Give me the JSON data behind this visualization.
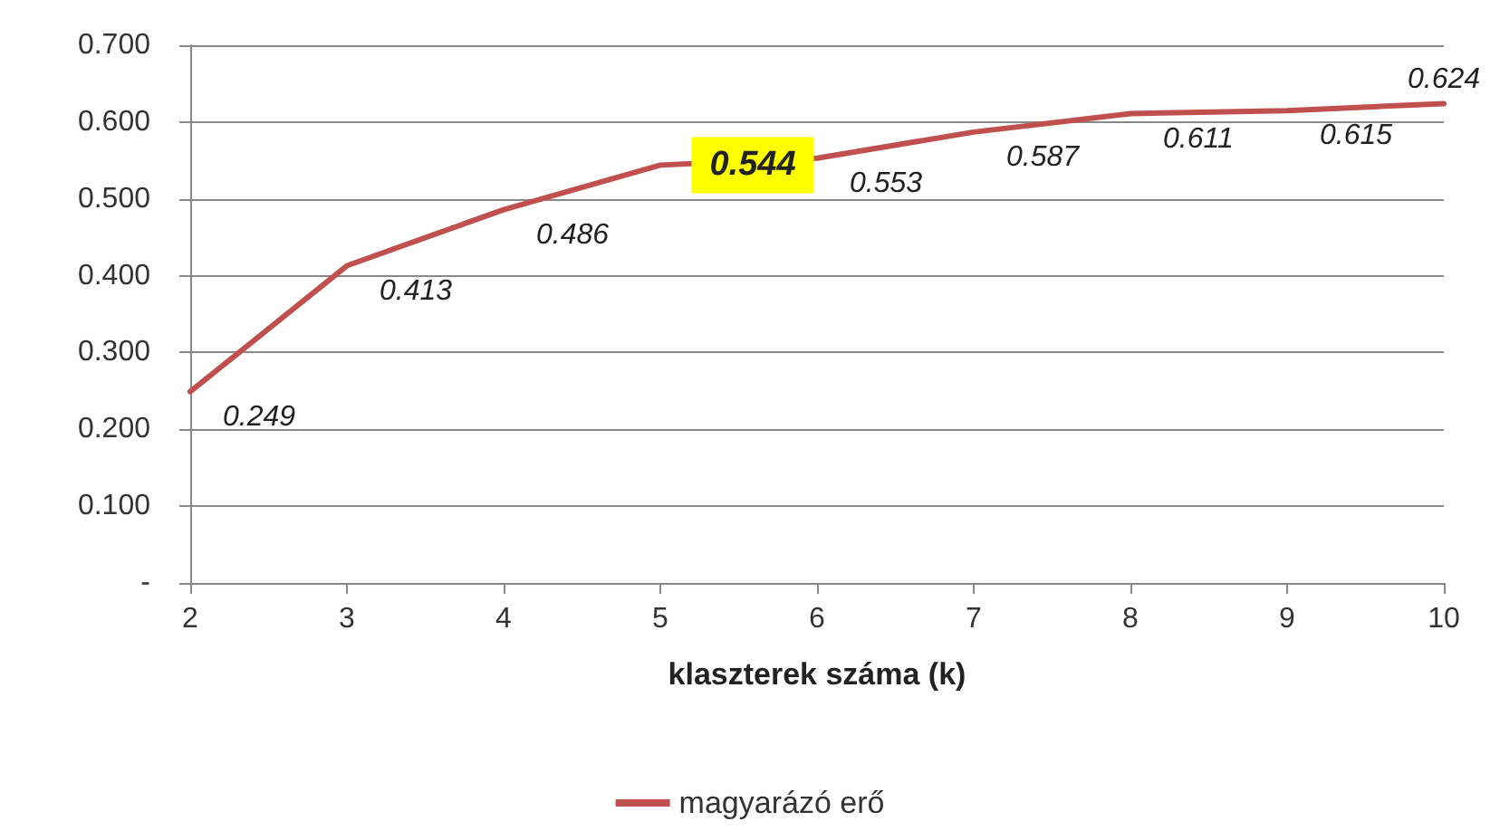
{
  "chart_data": {
    "type": "line",
    "xlabel": "klaszterek száma (k)",
    "x": [
      2,
      3,
      4,
      5,
      6,
      7,
      8,
      9,
      10
    ],
    "series": [
      {
        "name": "magyarázó erő",
        "color": "#c0504d",
        "values": [
          0.249,
          0.413,
          0.486,
          0.544,
          0.553,
          0.587,
          0.611,
          0.615,
          0.624
        ],
        "value_labels": [
          "0.249",
          "0.413",
          "0.486",
          null,
          "0.553",
          "0.587",
          "0.611",
          "0.615",
          "0.624"
        ]
      }
    ],
    "annotations": [
      {
        "text": "0.544",
        "x": 5,
        "y": 0.544
      }
    ],
    "xlim": [
      2,
      10
    ],
    "xticks": [
      2,
      3,
      4,
      5,
      6,
      7,
      8,
      9,
      10
    ],
    "ylim": [
      0,
      0.7
    ],
    "yticks": [
      {
        "value": 0,
        "label": "-"
      },
      {
        "value": 0.1,
        "label": "0.100"
      },
      {
        "value": 0.2,
        "label": "0.200"
      },
      {
        "value": 0.3,
        "label": "0.300"
      },
      {
        "value": 0.4,
        "label": "0.400"
      },
      {
        "value": 0.5,
        "label": "0.500"
      },
      {
        "value": 0.6,
        "label": "0.600"
      },
      {
        "value": 0.7,
        "label": "0.700"
      }
    ],
    "grid": "y",
    "legend": "bottom",
    "marker": "none",
    "line_style": "solid"
  }
}
